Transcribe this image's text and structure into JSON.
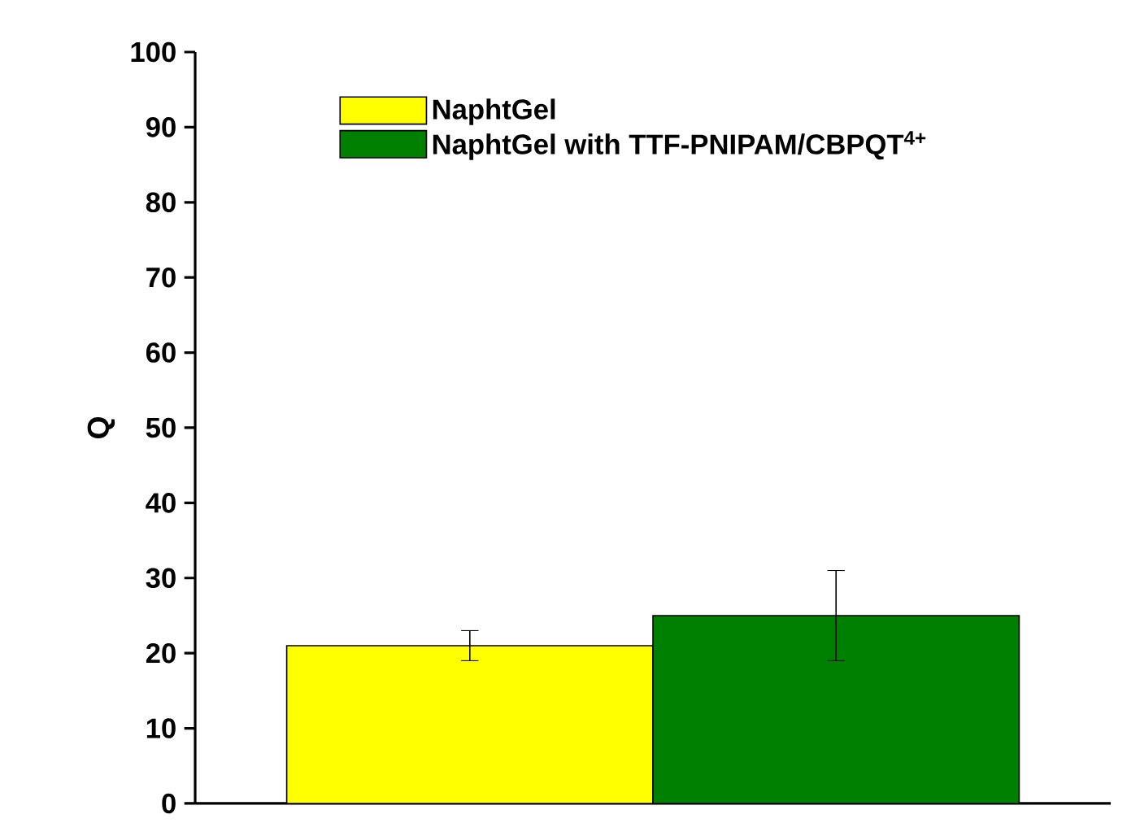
{
  "chart_data": {
    "type": "bar",
    "ylabel": "Q",
    "categories": [
      null
    ],
    "series": [
      {
        "name": "NaphtGel",
        "color": "#ffff00",
        "values": [
          21
        ],
        "errors": [
          [
            19,
            23
          ]
        ]
      },
      {
        "name": "NaphtGel with TTF-PNIPAM/CBPQT$^{4+}$",
        "color": "#008000",
        "values": [
          25
        ],
        "errors": [
          [
            19,
            31
          ]
        ]
      }
    ],
    "ylim": [
      0,
      100
    ],
    "yticks": [
      0,
      10,
      20,
      30,
      40,
      50,
      60,
      70,
      80,
      90,
      100
    ],
    "grid": false,
    "legend": "top"
  }
}
